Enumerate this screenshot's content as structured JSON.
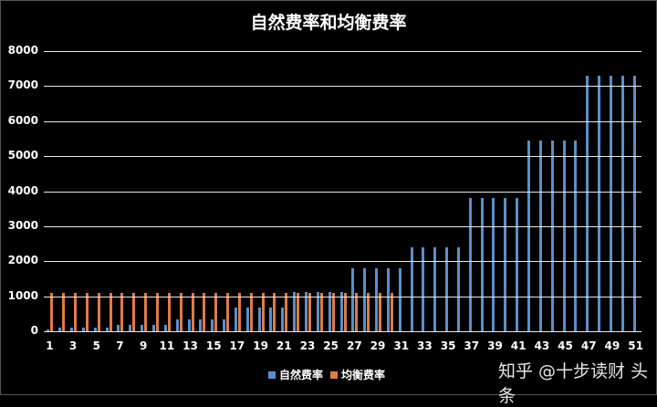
{
  "chart_data": {
    "type": "bar",
    "title": "自然费率和均衡费率",
    "xlabel": "",
    "ylabel": "",
    "ylim": [
      0,
      8000
    ],
    "yticks": [
      0,
      1000,
      2000,
      3000,
      4000,
      5000,
      6000,
      7000,
      8000
    ],
    "xtick_labels": [
      "1",
      "3",
      "5",
      "7",
      "9",
      "11",
      "13",
      "15",
      "17",
      "19",
      "21",
      "23",
      "25",
      "27",
      "29",
      "31",
      "33",
      "35",
      "37",
      "39",
      "41",
      "43",
      "45",
      "47",
      "49",
      "51"
    ],
    "grid": true,
    "legend_position": "bottom",
    "categories": [
      1,
      2,
      3,
      4,
      5,
      6,
      7,
      8,
      9,
      10,
      11,
      12,
      13,
      14,
      15,
      16,
      17,
      18,
      19,
      20,
      21,
      22,
      23,
      24,
      25,
      26,
      27,
      28,
      29,
      30,
      31,
      32,
      33,
      34,
      35,
      36,
      37,
      38,
      39,
      40,
      41,
      42,
      43,
      44,
      45,
      46,
      47,
      48,
      49,
      50,
      51
    ],
    "series": [
      {
        "name": "自然费率",
        "color": "#5b8fc9",
        "values": [
          50,
          100,
          100,
          100,
          100,
          100,
          180,
          180,
          180,
          180,
          180,
          350,
          350,
          350,
          350,
          350,
          680,
          680,
          680,
          680,
          680,
          1130,
          1130,
          1130,
          1130,
          1130,
          1800,
          1800,
          1800,
          1800,
          1800,
          2400,
          2400,
          2400,
          2400,
          2400,
          3800,
          3800,
          3800,
          3800,
          3800,
          5450,
          5450,
          5450,
          5450,
          5450,
          7300,
          7300,
          7300,
          7300,
          7300
        ]
      },
      {
        "name": "均衡费率",
        "color": "#e07b45",
        "values": [
          1100,
          1100,
          1100,
          1100,
          1100,
          1100,
          1100,
          1100,
          1100,
          1100,
          1100,
          1100,
          1100,
          1100,
          1100,
          1100,
          1100,
          1100,
          1100,
          1100,
          1100,
          1100,
          1100,
          1100,
          1100,
          1100,
          1100,
          1100,
          1100,
          1100
        ]
      }
    ]
  },
  "legend": {
    "items": [
      {
        "label": "自然费率",
        "color": "#5b8fc9"
      },
      {
        "label": "均衡费率",
        "color": "#e07b45"
      }
    ]
  },
  "watermark": "知乎 @十步读财 头条"
}
